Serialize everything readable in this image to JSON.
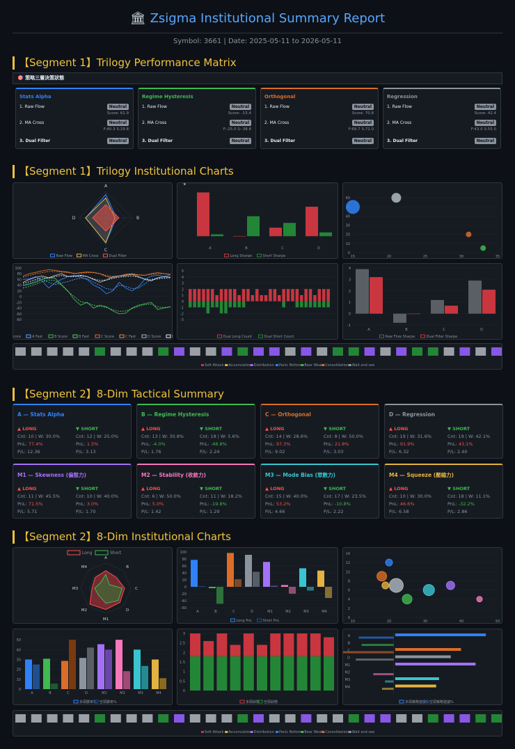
{
  "header": {
    "icon": "bank-icon",
    "title": "Zsigma Institutional Summary Report",
    "subtitle": "Symbol: 3661 | Date: 2025-05-11 to 2026-05-11"
  },
  "sections": {
    "s1": "【Segment 1】Trilogy Performance Matrix",
    "s2": "【Segment 1】Trilogy Institutional Charts",
    "s3": "【Segment 2】8-Dim Tactical Summary",
    "s4": "【Segment 2】8-Dim Institutional Charts"
  },
  "banner": "🎯 策略三層決策狀態",
  "colors": {
    "alpha": "#2f81f7",
    "hyst": "#3fb950",
    "orth": "#db6d28",
    "regr": "#8b949e",
    "m1": "#a371f7",
    "m2": "#f778ba",
    "m3": "#39c5cf",
    "m4": "#e3b341",
    "long": "#f85149",
    "short": "#3fb950"
  },
  "trilogy": [
    {
      "name": "Stats Alpha",
      "color": "#2f81f7",
      "r1": "1. Raw Flow",
      "p1": "Neutral",
      "s1": "Score: 61.9",
      "r2": "2. MA Cross",
      "p2": "Neutral",
      "s2": "F:40.3 S:29.8",
      "r3": "3. Dual Filter",
      "p3": "Neutral"
    },
    {
      "name": "Regime Hysteresis",
      "color": "#3fb950",
      "r1": "1. Raw Flow",
      "p1": "Neutral",
      "s1": "Score: -15.4",
      "r2": "2. MA Cross",
      "p2": "Neutral",
      "s2": "F:-25.0 S:-38.8",
      "r3": "3. Dual Filter",
      "p3": "Neutral"
    },
    {
      "name": "Orthogonal",
      "color": "#db6d28",
      "r1": "1. Raw Flow",
      "p1": "Neutral",
      "s1": "Score: 70.8",
      "r2": "2. MA Cross",
      "p2": "Neutral",
      "s2": "F:69.7 S:72.0",
      "r3": "3. Dual Filter",
      "p3": "Neutral"
    },
    {
      "name": "Regression",
      "color": "#8b949e",
      "r1": "1. Raw Flow",
      "p1": "Neutral",
      "s1": "Score: 42.4",
      "r2": "2. MA Cross",
      "p2": "Neutral",
      "s2": "F:43.0 S:55.0",
      "r3": "3. Dual Filter",
      "p3": "Neutral"
    }
  ],
  "dims": [
    {
      "name": "A — Stats Alpha",
      "color": "#2f81f7",
      "long": {
        "label": "▲ LONG",
        "cnt": "Cnt: 10 | W: 30.0%",
        "pnl_k": "PnL:",
        "pnl": "77.4%",
        "pl": "P/L: 12.36",
        "neg": false
      },
      "short": {
        "label": "▼ SHORT",
        "cnt": "Cnt: 12 | W: 25.0%",
        "pnl_k": "PnL:",
        "pnl": "1.5%",
        "pl": "P/L: 3.13",
        "neg": false
      }
    },
    {
      "name": "B — Regime Hysteresis",
      "color": "#3fb950",
      "long": {
        "label": "▲ LONG",
        "cnt": "Cnt: 13 | W: 30.8%",
        "pnl_k": "PnL:",
        "pnl": "-4.0%",
        "pl": "P/L: 1.76",
        "neg": true
      },
      "short": {
        "label": "▼ SHORT",
        "cnt": "Cnt: 18 | W: 5.6%",
        "pnl_k": "PnL:",
        "pnl": "-48.8%",
        "pl": "P/L: 2.24",
        "neg": true
      }
    },
    {
      "name": "C — Orthogonal",
      "color": "#db6d28",
      "long": {
        "label": "▲ LONG",
        "cnt": "Cnt: 14 | W: 28.6%",
        "pnl_k": "PnL:",
        "pnl": "97.3%",
        "pl": "P/L: 9.02",
        "neg": false
      },
      "short": {
        "label": "▼ SHORT",
        "cnt": "Cnt: 8 | W: 50.0%",
        "pnl_k": "PnL:",
        "pnl": "21.8%",
        "pl": "P/L: 3.03",
        "neg": false
      }
    },
    {
      "name": "D — Regression",
      "color": "#8b949e",
      "long": {
        "label": "▲ LONG",
        "cnt": "Cnt: 19 | W: 31.6%",
        "pnl_k": "PnL:",
        "pnl": "91.9%",
        "pl": "P/L: 6.32",
        "neg": false
      },
      "short": {
        "label": "▼ SHORT",
        "cnt": "Cnt: 19 | W: 42.1%",
        "pnl_k": "PnL:",
        "pnl": "43.1%",
        "pl": "P/L: 2.40",
        "neg": false
      }
    },
    {
      "name": "M1 — Skewness (偏態力)",
      "color": "#a371f7",
      "long": {
        "label": "▲ LONG",
        "cnt": "Cnt: 11 | W: 45.5%",
        "pnl_k": "PnL:",
        "pnl": "71.5%",
        "pl": "P/L: 5.71",
        "neg": false
      },
      "short": {
        "label": "▼ SHORT",
        "cnt": "Cnt: 10 | W: 40.0%",
        "pnl_k": "PnL:",
        "pnl": "3.0%",
        "pl": "P/L: 1.70",
        "neg": false
      }
    },
    {
      "name": "M2 — Stability (收斂力)",
      "color": "#f778ba",
      "long": {
        "label": "▲ LONG",
        "cnt": "Cnt: 6 | W: 50.0%",
        "pnl_k": "PnL:",
        "pnl": "5.0%",
        "pl": "P/L: 1.42",
        "neg": false
      },
      "short": {
        "label": "▼ SHORT",
        "cnt": "Cnt: 11 | W: 18.2%",
        "pnl_k": "PnL:",
        "pnl": "-19.8%",
        "pl": "P/L: 1.29",
        "neg": true
      }
    },
    {
      "name": "M3 — Mode Bias (眾數力)",
      "color": "#39c5cf",
      "long": {
        "label": "▲ LONG",
        "cnt": "Cnt: 15 | W: 40.0%",
        "pnl_k": "PnL:",
        "pnl": "53.2%",
        "pl": "P/L: 4.66",
        "neg": false
      },
      "short": {
        "label": "▼ SHORT",
        "cnt": "Cnt: 17 | W: 23.5%",
        "pnl_k": "PnL:",
        "pnl": "-10.8%",
        "pl": "P/L: 2.22",
        "neg": true
      }
    },
    {
      "name": "M4 — Squeeze (壓縮力)",
      "color": "#e3b341",
      "long": {
        "label": "▲ LONG",
        "cnt": "Cnt: 10 | W: 30.0%",
        "pnl_k": "PnL:",
        "pnl": "46.6%",
        "pl": "P/L: 6.58",
        "neg": false
      },
      "short": {
        "label": "▼ SHORT",
        "cnt": "Cnt: 18 | W: 11.1%",
        "pnl_k": "PnL:",
        "pnl": "-32.2%",
        "pl": "P/L: 2.86",
        "neg": true
      }
    }
  ],
  "chart_data": [
    {
      "type": "radar",
      "axes": [
        "A",
        "B",
        "C",
        "D"
      ],
      "series": [
        {
          "name": "Raw Flow",
          "values": [
            62,
            -15,
            71,
            42
          ]
        },
        {
          "name": "MA Cross",
          "values": [
            40,
            -25,
            70,
            43
          ]
        },
        {
          "name": "Dual Filter",
          "values": [
            0,
            0,
            0,
            0
          ]
        }
      ]
    },
    {
      "type": "bar",
      "categories": [
        "A",
        "B",
        "C",
        "D"
      ],
      "series": [
        {
          "name": "Long Sharpe",
          "values": [
            4.6,
            0.0,
            0.9,
            3.1
          ]
        },
        {
          "name": "Short Sharpe",
          "values": [
            0.2,
            2.1,
            1.4,
            0.4
          ]
        }
      ],
      "ylim": [
        -1,
        5
      ]
    },
    {
      "type": "scatter",
      "points": [
        {
          "x": 15,
          "y": 50,
          "r": 10,
          "color": "#2f81f7"
        },
        {
          "x": 21,
          "y": 60,
          "r": 7,
          "color": "#b1bac4"
        },
        {
          "x": 31,
          "y": 20,
          "r": 4,
          "color": "#db6d28"
        },
        {
          "x": 33,
          "y": 5,
          "r": 4,
          "color": "#3fb950"
        }
      ],
      "xlim": [
        15,
        35
      ],
      "ylim": [
        0,
        70
      ]
    },
    {
      "type": "line",
      "series": [
        {
          "name": "A Score"
        },
        {
          "name": "A Fast"
        },
        {
          "name": "B Score"
        },
        {
          "name": "B Fast"
        },
        {
          "name": "C Score"
        },
        {
          "name": "C Fast"
        },
        {
          "name": "D Score"
        },
        {
          "name": "D Fast"
        }
      ],
      "ylim": [
        -80,
        100
      ]
    },
    {
      "type": "bar",
      "series": [
        {
          "name": "Dual Long Count"
        },
        {
          "name": "Dual Short Count"
        }
      ],
      "ylim": [
        -3,
        5
      ]
    },
    {
      "type": "bar",
      "categories": [
        "A",
        "B",
        "C",
        "D"
      ],
      "series": [
        {
          "name": "Raw Flow Sharpe",
          "values": [
            3.9,
            -0.8,
            1.2,
            2.9
          ]
        },
        {
          "name": "Dual Filter Sharpe",
          "values": [
            3.2,
            0.0,
            0.7,
            2.1
          ]
        }
      ]
    },
    {
      "type": "heatstrip",
      "legend": [
        "Soft Attack",
        "Accumulation",
        "Distribution",
        "Panic Bottom",
        "Bear Weak",
        "Consolidation",
        "Wait and see"
      ]
    },
    {
      "type": "radar",
      "axes": [
        "A",
        "B",
        "C",
        "D",
        "M1",
        "M2",
        "M3",
        "M4"
      ],
      "series": [
        {
          "name": "Long"
        },
        {
          "name": "Short"
        }
      ]
    },
    {
      "type": "bar",
      "categories": [
        "A",
        "B",
        "C",
        "D",
        "M1",
        "M2",
        "M3",
        "M4"
      ],
      "series": [
        {
          "name": "Long PnL",
          "values": [
            77.4,
            -4.0,
            97.3,
            91.9,
            71.5,
            5.0,
            53.2,
            46.6
          ]
        },
        {
          "name": "Short PnL",
          "values": [
            1.5,
            -48.8,
            21.8,
            43.1,
            3.0,
            -19.8,
            -10.8,
            -32.2
          ]
        }
      ],
      "ylim": [
        -60,
        100
      ]
    },
    {
      "type": "scatter",
      "points": [
        {
          "x": 20,
          "y": 12,
          "r": 5,
          "color": "#2f81f7"
        },
        {
          "x": 18,
          "y": 9,
          "r": 7,
          "color": "#db6d28"
        },
        {
          "x": 19,
          "y": 7,
          "r": 5,
          "color": "#e3b341"
        },
        {
          "x": 22,
          "y": 7,
          "r": 10,
          "color": "#b1bac4"
        },
        {
          "x": 25,
          "y": 4,
          "r": 7,
          "color": "#3fb950"
        },
        {
          "x": 31,
          "y": 6,
          "r": 8,
          "color": "#39c5cf"
        },
        {
          "x": 37,
          "y": 7,
          "r": 6,
          "color": "#a371f7"
        },
        {
          "x": 45,
          "y": 4,
          "r": 4,
          "color": "#f778ba"
        }
      ],
      "xlim": [
        10,
        50
      ],
      "ylim": [
        0,
        14
      ]
    },
    {
      "type": "bar",
      "categories": [
        "A",
        "B",
        "C",
        "D",
        "M1",
        "M2",
        "M3",
        "M4"
      ],
      "series": [
        {
          "name": "多頭勝率%",
          "values": [
            30,
            30.8,
            28.6,
            31.6,
            45.5,
            50,
            40,
            30
          ]
        },
        {
          "name": "空頭勝率%",
          "values": [
            25,
            5.6,
            50,
            42.1,
            40,
            18.2,
            23.5,
            11.1
          ]
        }
      ]
    },
    {
      "type": "stacked-bar",
      "series": [
        {
          "name": "多頭狀態"
        },
        {
          "name": "空頭狀態"
        }
      ]
    },
    {
      "type": "barh",
      "categories": [
        "A",
        "B",
        "C",
        "D",
        "M1",
        "M2",
        "M3",
        "M4"
      ],
      "series": [
        {
          "name": "多頭策略建議%"
        },
        {
          "name": "空頭策略建議%"
        }
      ]
    },
    {
      "type": "heatstrip",
      "legend": [
        "Soft Attack",
        "Accumulation",
        "Distribution",
        "Panic Bottom",
        "Bear Weak",
        "Consolidation",
        "Wait and see"
      ]
    }
  ],
  "legends": {
    "c1": [
      "Raw Flow",
      "MA Cross",
      "Dual Filter"
    ],
    "c2": [
      "Long Sharpe",
      "Short Sharpe"
    ],
    "c4": [
      "A Score",
      "A Fast",
      "B Score",
      "B Fast",
      "C Score",
      "C Fast",
      "D Score",
      "D Fast"
    ],
    "c5": [
      "Dual Long Count",
      "Dual Short Count"
    ],
    "c6": [
      "Raw Flow Sharpe",
      "Dual Filter Sharpe"
    ],
    "strip": [
      "Soft Attack",
      "Accumulation",
      "Distribution",
      "Panic Bottom",
      "Bear Weak",
      "Consolidation",
      "Wait and see"
    ],
    "r2": [
      "Long",
      "Short"
    ],
    "b2": [
      "Long PnL",
      "Short PnL"
    ],
    "w2": [
      "多頭勝率%",
      "空頭勝率%"
    ],
    "s2": [
      "多頭狀態",
      "空頭狀態"
    ],
    "h2": [
      "多頭策略建議%",
      "空頭策略建議%"
    ]
  }
}
